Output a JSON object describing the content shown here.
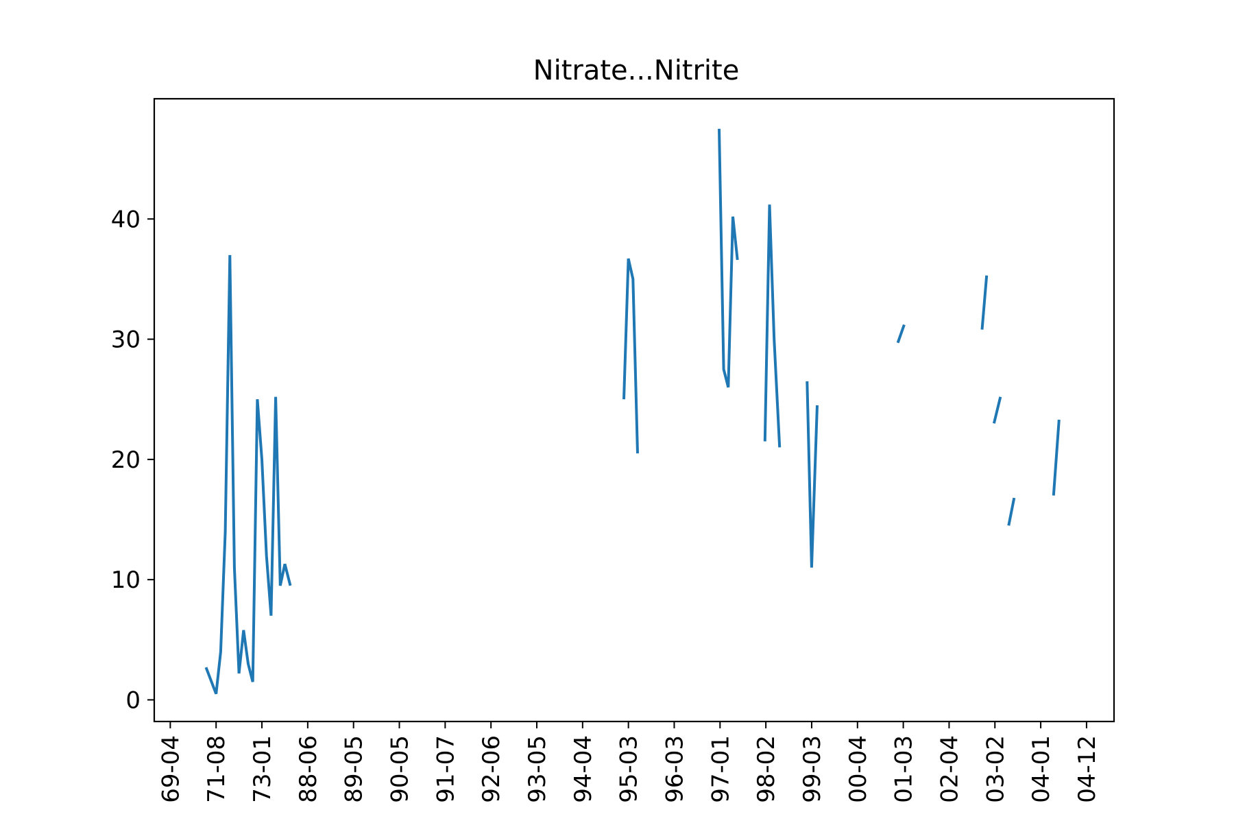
{
  "chart_data": {
    "type": "line",
    "title": "Nitrate...Nitrite",
    "xlabel": "",
    "ylabel": "",
    "ylim": [
      -1.8,
      50
    ],
    "yticks": [
      0,
      10,
      20,
      30,
      40
    ],
    "x_categories": [
      "69-04",
      "71-08",
      "73-01",
      "88-06",
      "89-05",
      "90-05",
      "91-07",
      "92-06",
      "93-05",
      "94-04",
      "95-03",
      "96-03",
      "97-01",
      "98-02",
      "99-03",
      "00-04",
      "01-03",
      "02-04",
      "03-02",
      "04-01",
      "04-12"
    ],
    "x_range": [
      -0.35,
      20.6
    ],
    "grid": false,
    "legend": "none",
    "series": [
      {
        "color": "#1f77b4",
        "segments": [
          [
            [
              0.78,
              2.7
            ],
            [
              1.0,
              0.5
            ],
            [
              1.1,
              4.0
            ],
            [
              1.2,
              14.0
            ],
            [
              1.3,
              37.0
            ],
            [
              1.4,
              11.0
            ],
            [
              1.5,
              2.2
            ],
            [
              1.6,
              5.8
            ],
            [
              1.7,
              3.0
            ],
            [
              1.8,
              1.5
            ],
            [
              1.9,
              25.0
            ],
            [
              2.0,
              20.0
            ],
            [
              2.1,
              12.0
            ],
            [
              2.2,
              7.0
            ],
            [
              2.3,
              25.2
            ],
            [
              2.4,
              9.5
            ],
            [
              2.5,
              11.3
            ],
            [
              2.62,
              9.5
            ]
          ],
          [
            [
              9.9,
              25.0
            ],
            [
              10.0,
              36.7
            ],
            [
              10.1,
              35.0
            ],
            [
              10.2,
              20.5
            ]
          ],
          [
            [
              11.98,
              47.5
            ],
            [
              12.08,
              27.5
            ],
            [
              12.18,
              26.0
            ],
            [
              12.28,
              40.2
            ],
            [
              12.38,
              36.6
            ]
          ],
          [
            [
              12.98,
              21.5
            ],
            [
              13.08,
              41.2
            ],
            [
              13.18,
              30.0
            ],
            [
              13.3,
              21.0
            ]
          ],
          [
            [
              13.9,
              26.5
            ],
            [
              14.0,
              11.0
            ],
            [
              14.12,
              24.5
            ]
          ],
          [
            [
              15.88,
              29.7
            ],
            [
              16.02,
              31.2
            ]
          ],
          [
            [
              17.72,
              30.8
            ],
            [
              17.82,
              35.3
            ]
          ],
          [
            [
              17.98,
              23.0
            ],
            [
              18.12,
              25.2
            ]
          ],
          [
            [
              18.3,
              14.5
            ],
            [
              18.42,
              16.8
            ]
          ],
          [
            [
              19.28,
              17.0
            ],
            [
              19.4,
              23.3
            ]
          ]
        ]
      }
    ]
  }
}
